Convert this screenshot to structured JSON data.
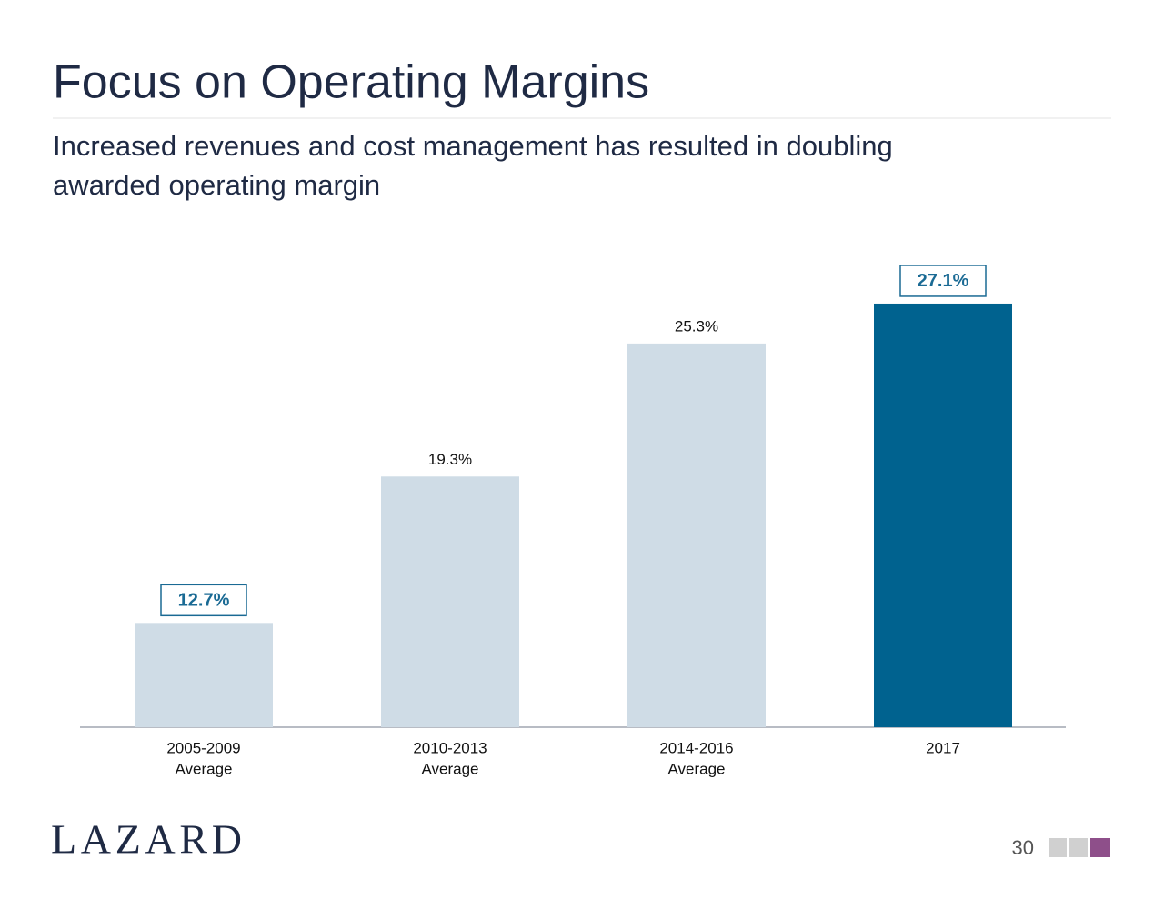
{
  "chart_data": {
    "type": "bar",
    "title": "Focus on Operating Margins",
    "subtitle": [
      "Increased revenues and cost management has resulted in doubling",
      "awarded operating margin"
    ],
    "categories": [
      [
        "2005-2009",
        "Average"
      ],
      [
        "2010-2013",
        "Average"
      ],
      [
        "2014-2016",
        "Average"
      ],
      [
        "2017"
      ]
    ],
    "values": [
      12.7,
      19.3,
      25.3,
      27.1
    ],
    "value_labels": [
      "12.7%",
      "19.3%",
      "25.3%",
      "27.1%"
    ],
    "colors": [
      "#cfdce6",
      "#cfdce6",
      "#cfdce6",
      "#00628f"
    ],
    "boxed": [
      true,
      false,
      false,
      true
    ],
    "ylim": [
      8,
      28
    ]
  },
  "footer": {
    "logo": "LAZARD",
    "page": "30"
  }
}
